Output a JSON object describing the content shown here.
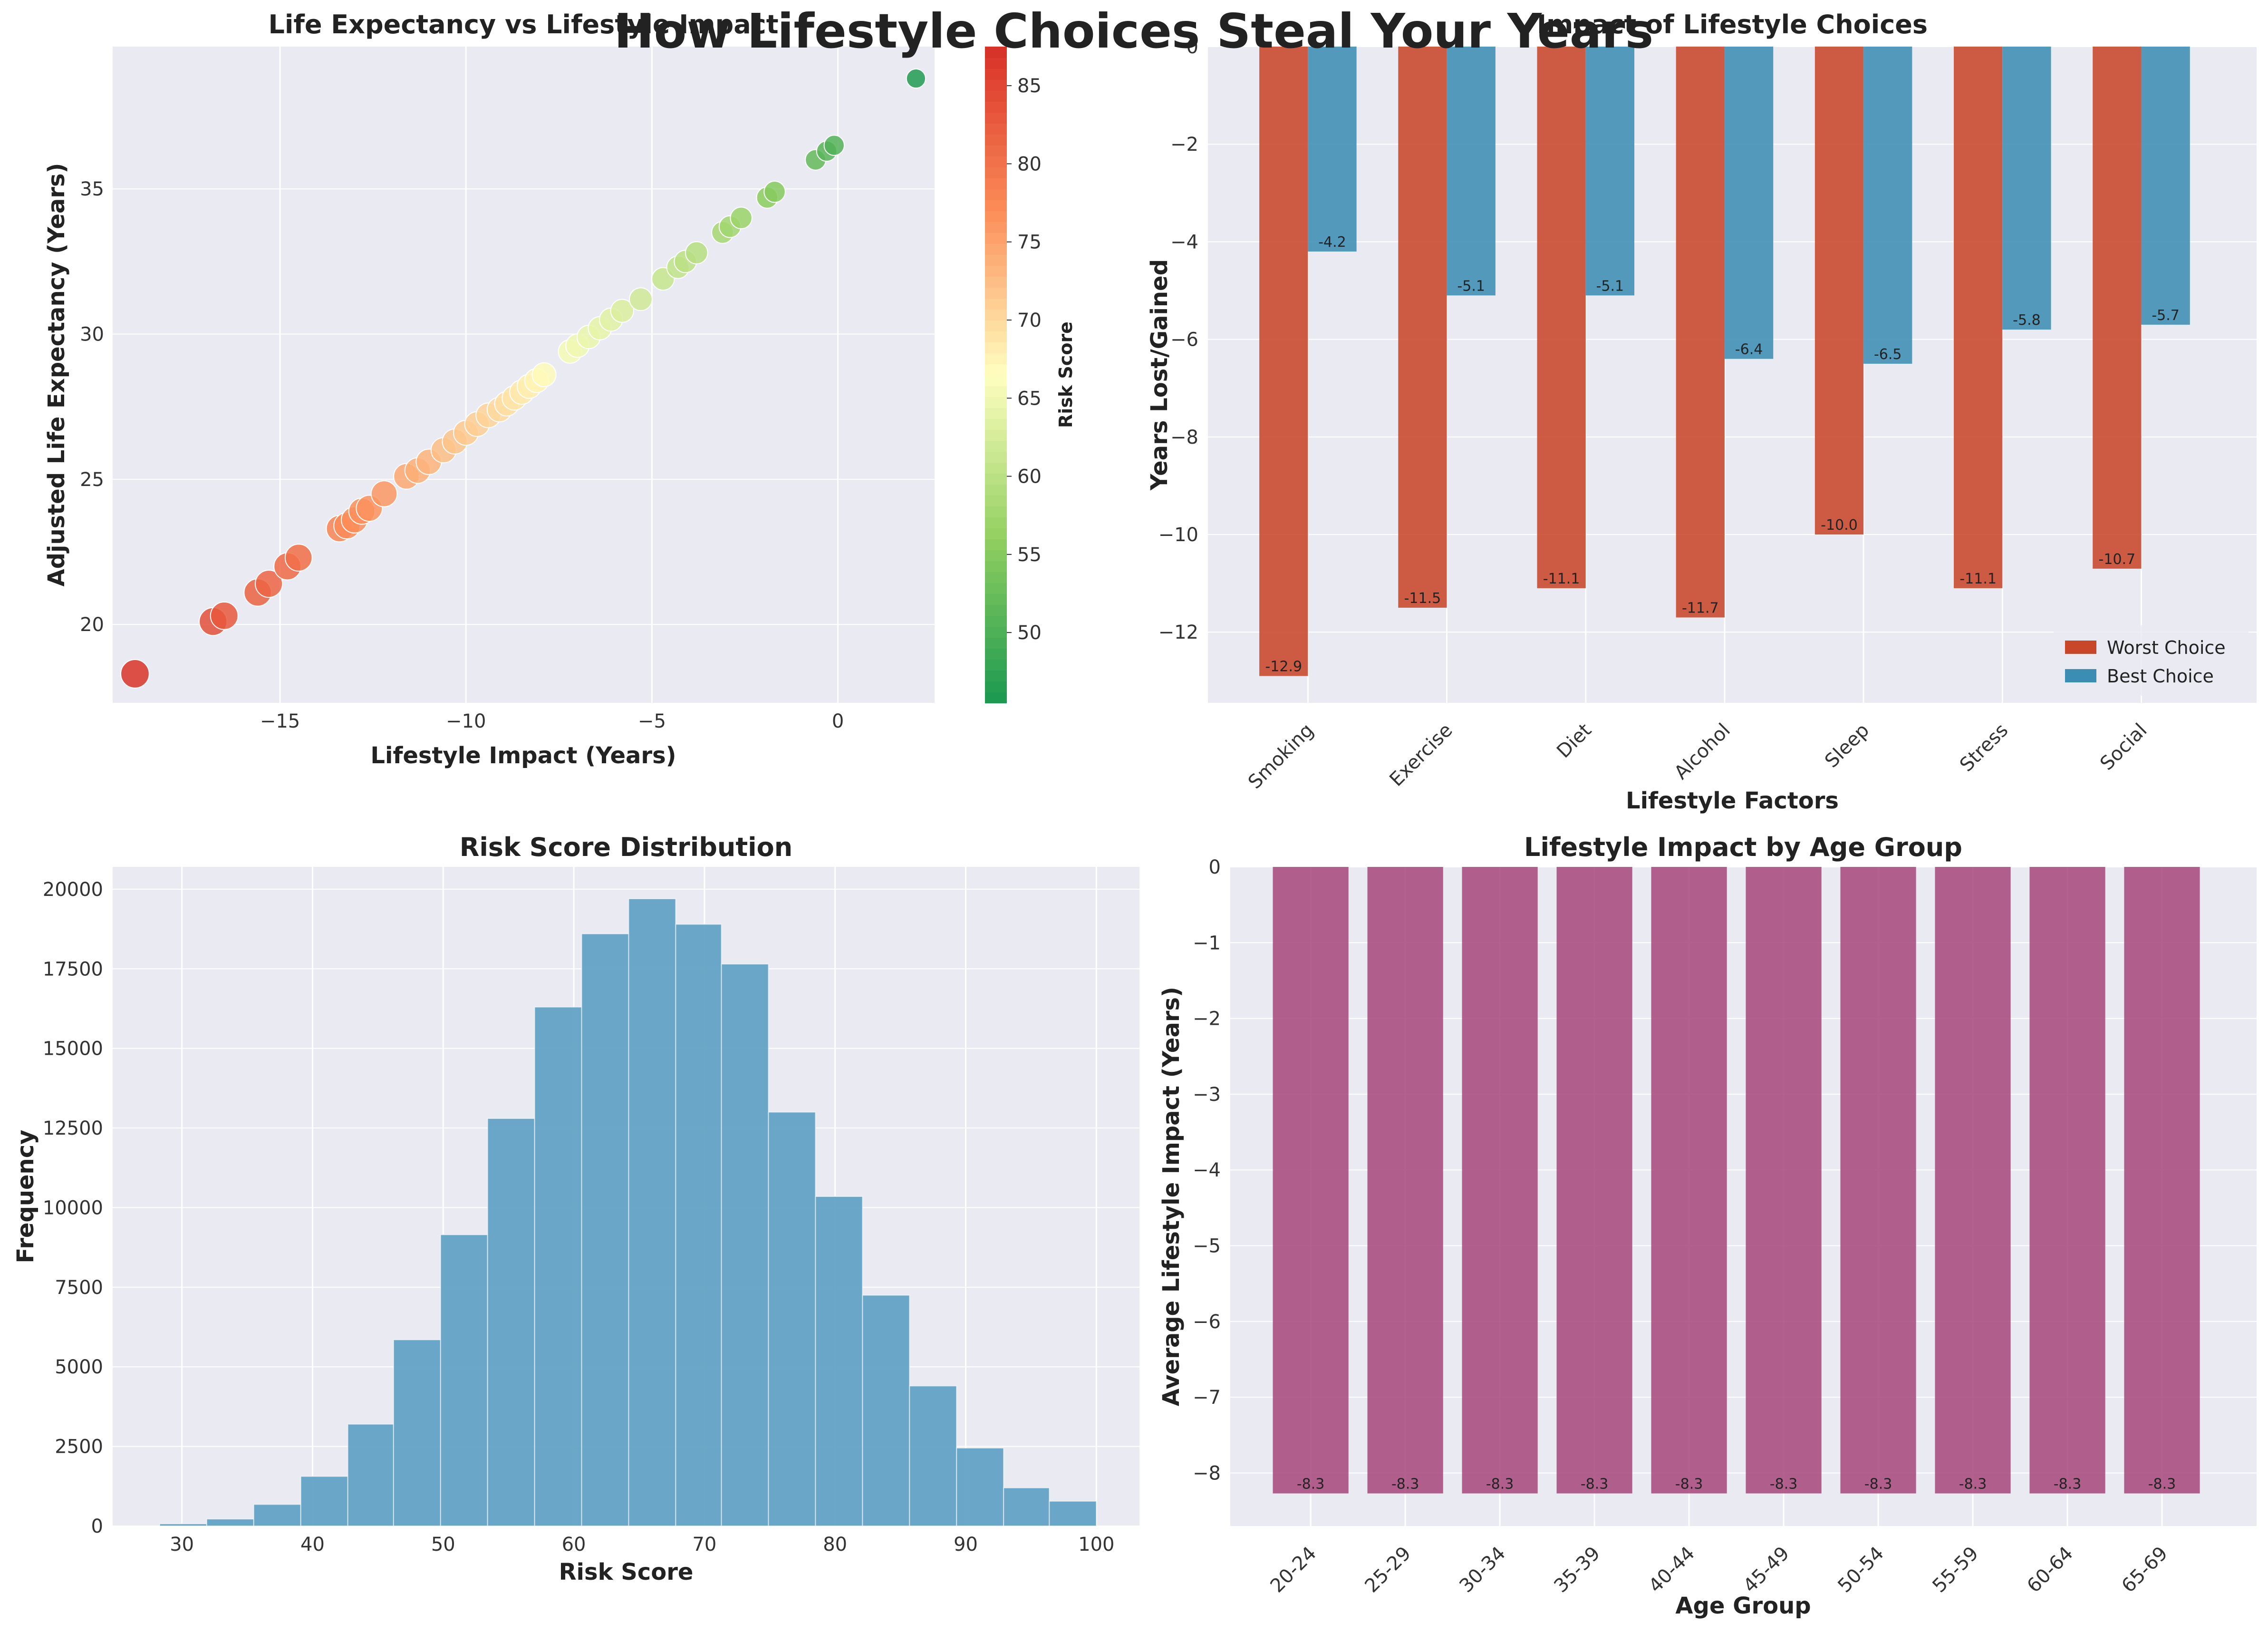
{
  "figure": {
    "suptitle": "How Lifestyle Choices Steal Your Years",
    "colors": {
      "panel_bg": "#EAEAF2",
      "grid": "#FFFFFF",
      "worst": "#C8472B",
      "best": "#3C8DB4",
      "hist": "#5B9FC2",
      "age": "#A6467A"
    }
  },
  "chart_data": [
    {
      "id": "scatter",
      "type": "scatter",
      "title": "Life Expectancy vs Lifestyle Impact",
      "xlabel": "Lifestyle Impact (Years)",
      "ylabel": "Adjusted Life Expectancy (Years)",
      "xlim": [
        -19.5,
        2.6
      ],
      "ylim": [
        17.3,
        39.9
      ],
      "xticks": [
        -15,
        -10,
        -5,
        0
      ],
      "yticks": [
        20,
        25,
        30,
        35
      ],
      "grid": true,
      "colorbar": {
        "label": "Risk Score",
        "range": [
          45.5,
          87.5
        ],
        "ticks": [
          50,
          55,
          60,
          65,
          70,
          75,
          80,
          85
        ],
        "colormap": "RdYlGn_r"
      },
      "points": [
        {
          "x": -18.9,
          "y": 18.3,
          "risk": 87
        },
        {
          "x": -16.8,
          "y": 20.1,
          "risk": 84
        },
        {
          "x": -16.5,
          "y": 20.3,
          "risk": 83
        },
        {
          "x": -15.6,
          "y": 21.1,
          "risk": 82
        },
        {
          "x": -15.3,
          "y": 21.4,
          "risk": 81.5
        },
        {
          "x": -14.8,
          "y": 22.0,
          "risk": 81
        },
        {
          "x": -14.5,
          "y": 22.3,
          "risk": 80.5
        },
        {
          "x": -13.4,
          "y": 23.3,
          "risk": 78
        },
        {
          "x": -13.2,
          "y": 23.4,
          "risk": 77.5
        },
        {
          "x": -13.0,
          "y": 23.6,
          "risk": 77
        },
        {
          "x": -12.8,
          "y": 23.9,
          "risk": 76.8
        },
        {
          "x": -12.6,
          "y": 24.0,
          "risk": 76.5
        },
        {
          "x": -12.2,
          "y": 24.5,
          "risk": 76
        },
        {
          "x": -11.6,
          "y": 25.1,
          "risk": 74.5
        },
        {
          "x": -11.3,
          "y": 25.3,
          "risk": 74
        },
        {
          "x": -11.0,
          "y": 25.6,
          "risk": 73.5
        },
        {
          "x": -10.6,
          "y": 26.0,
          "risk": 72.5
        },
        {
          "x": -10.3,
          "y": 26.3,
          "risk": 72
        },
        {
          "x": -10.0,
          "y": 26.6,
          "risk": 71.5
        },
        {
          "x": -9.7,
          "y": 26.9,
          "risk": 71
        },
        {
          "x": -9.4,
          "y": 27.2,
          "risk": 70.5
        },
        {
          "x": -9.1,
          "y": 27.4,
          "risk": 70
        },
        {
          "x": -8.9,
          "y": 27.6,
          "risk": 69.5
        },
        {
          "x": -8.7,
          "y": 27.8,
          "risk": 69
        },
        {
          "x": -8.5,
          "y": 28.0,
          "risk": 68.5
        },
        {
          "x": -8.3,
          "y": 28.2,
          "risk": 68
        },
        {
          "x": -8.1,
          "y": 28.4,
          "risk": 67.5
        },
        {
          "x": -7.9,
          "y": 28.6,
          "risk": 67
        },
        {
          "x": -7.2,
          "y": 29.4,
          "risk": 65.5
        },
        {
          "x": -7.0,
          "y": 29.6,
          "risk": 65
        },
        {
          "x": -6.7,
          "y": 29.9,
          "risk": 64.5
        },
        {
          "x": -6.4,
          "y": 30.2,
          "risk": 64
        },
        {
          "x": -6.1,
          "y": 30.5,
          "risk": 63.5
        },
        {
          "x": -5.8,
          "y": 30.8,
          "risk": 63
        },
        {
          "x": -5.3,
          "y": 31.2,
          "risk": 62
        },
        {
          "x": -4.7,
          "y": 31.9,
          "risk": 61
        },
        {
          "x": -4.3,
          "y": 32.3,
          "risk": 60.5
        },
        {
          "x": -4.1,
          "y": 32.5,
          "risk": 60
        },
        {
          "x": -3.8,
          "y": 32.8,
          "risk": 59.5
        },
        {
          "x": -3.1,
          "y": 33.5,
          "risk": 58
        },
        {
          "x": -2.9,
          "y": 33.7,
          "risk": 57.5
        },
        {
          "x": -2.6,
          "y": 34.0,
          "risk": 57
        },
        {
          "x": -1.9,
          "y": 34.7,
          "risk": 55.5
        },
        {
          "x": -1.7,
          "y": 34.9,
          "risk": 55
        },
        {
          "x": -0.6,
          "y": 36.0,
          "risk": 52
        },
        {
          "x": -0.3,
          "y": 36.3,
          "risk": 51
        },
        {
          "x": -0.1,
          "y": 36.5,
          "risk": 50.5
        },
        {
          "x": 2.1,
          "y": 38.8,
          "risk": 46
        }
      ]
    },
    {
      "id": "factors",
      "type": "bar",
      "title": "Impact of Lifestyle Choices",
      "xlabel": "Lifestyle Factors",
      "ylabel": "Years Lost/Gained",
      "ylim": [
        -13.45,
        0
      ],
      "yticks": [
        -12,
        -10,
        -8,
        -6,
        -4,
        -2,
        0
      ],
      "categories": [
        "Smoking",
        "Exercise",
        "Diet",
        "Alcohol",
        "Sleep",
        "Stress",
        "Social"
      ],
      "series": [
        {
          "name": "Worst Choice",
          "values": [
            -12.9,
            -11.5,
            -11.1,
            -11.7,
            -10.0,
            -11.1,
            -10.7
          ],
          "labels": [
            "-12.9",
            "-11.5",
            "-11.1",
            "-11.7",
            "-10.0",
            "-11.1",
            "-10.7"
          ]
        },
        {
          "name": "Best Choice",
          "values": [
            -4.2,
            -5.1,
            -5.1,
            -6.4,
            -6.5,
            -5.8,
            -5.7
          ],
          "labels": [
            "-4.2",
            "-5.1",
            "-5.1",
            "-6.4",
            "-6.5",
            "-5.8",
            "-5.7"
          ]
        }
      ],
      "legend": "lower-right",
      "grid": true
    },
    {
      "id": "hist",
      "type": "bar",
      "title": "Risk Score Distribution",
      "xlabel": "Risk Score",
      "ylabel": "Frequency",
      "xlim": [
        24.7,
        103.3
      ],
      "ylim": [
        0,
        20700
      ],
      "xticks": [
        30,
        40,
        50,
        60,
        70,
        80,
        90,
        100
      ],
      "yticks": [
        0,
        2500,
        5000,
        7500,
        10000,
        12500,
        15000,
        17500,
        20000
      ],
      "bins": [
        {
          "from": 28.3,
          "to": 31.9,
          "count": 70
        },
        {
          "from": 31.9,
          "to": 35.5,
          "count": 220
        },
        {
          "from": 35.5,
          "to": 39.1,
          "count": 680
        },
        {
          "from": 39.1,
          "to": 42.7,
          "count": 1560
        },
        {
          "from": 42.7,
          "to": 46.2,
          "count": 3200
        },
        {
          "from": 46.2,
          "to": 49.8,
          "count": 5850
        },
        {
          "from": 49.8,
          "to": 53.4,
          "count": 9150
        },
        {
          "from": 53.4,
          "to": 57.0,
          "count": 12800
        },
        {
          "from": 57.0,
          "to": 60.6,
          "count": 16300
        },
        {
          "from": 60.6,
          "to": 64.2,
          "count": 18600
        },
        {
          "from": 64.2,
          "to": 67.8,
          "count": 19700
        },
        {
          "from": 67.8,
          "to": 71.3,
          "count": 18900
        },
        {
          "from": 71.3,
          "to": 74.9,
          "count": 17650
        },
        {
          "from": 74.9,
          "to": 78.5,
          "count": 13000
        },
        {
          "from": 78.5,
          "to": 82.1,
          "count": 10350
        },
        {
          "from": 82.1,
          "to": 85.7,
          "count": 7250
        },
        {
          "from": 85.7,
          "to": 89.3,
          "count": 4400
        },
        {
          "from": 89.3,
          "to": 92.9,
          "count": 2450
        },
        {
          "from": 92.9,
          "to": 96.4,
          "count": 1200
        },
        {
          "from": 96.4,
          "to": 100.0,
          "count": 780
        }
      ],
      "grid": true
    },
    {
      "id": "age",
      "type": "bar",
      "title": "Lifestyle Impact by Age Group",
      "xlabel": "Age Group",
      "ylabel": "Average Lifestyle Impact (Years)",
      "ylim": [
        -8.7,
        0
      ],
      "yticks": [
        -8,
        -7,
        -6,
        -5,
        -4,
        -3,
        -2,
        -1,
        0
      ],
      "categories": [
        "20-24",
        "25-29",
        "30-34",
        "35-39",
        "40-44",
        "45-49",
        "50-54",
        "55-59",
        "60-64",
        "65-69"
      ],
      "values": [
        -8.27,
        -8.27,
        -8.27,
        -8.27,
        -8.27,
        -8.27,
        -8.27,
        -8.27,
        -8.27,
        -8.27
      ],
      "labels": [
        "-8.3",
        "-8.3",
        "-8.3",
        "-8.3",
        "-8.3",
        "-8.3",
        "-8.3",
        "-8.3",
        "-8.3",
        "-8.3"
      ],
      "grid": true
    }
  ]
}
